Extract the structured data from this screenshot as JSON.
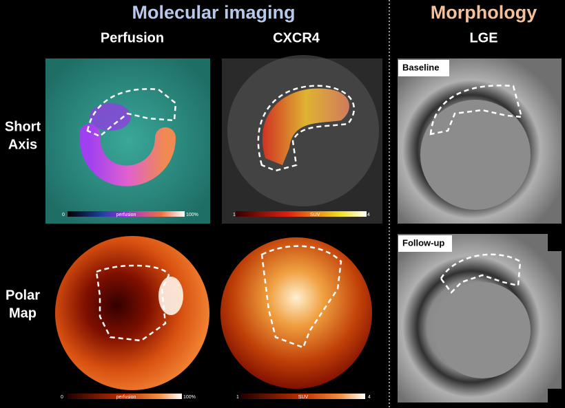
{
  "headers": {
    "molecular": "Molecular imaging",
    "morphology": "Morphology"
  },
  "columns": [
    "Perfusion",
    "CXCR4",
    "LGE"
  ],
  "rows": [
    [
      "Short",
      "Axis"
    ],
    [
      "Polar",
      "Map"
    ]
  ],
  "lge_labels": [
    "Baseline",
    "Follow-up"
  ],
  "colorbars": [
    {
      "min": "0",
      "label": "perfusion",
      "max": "100%"
    },
    {
      "min": "1",
      "label": "SUV",
      "max": "4"
    },
    {
      "min": "0",
      "label": "perfusion",
      "max": "100%"
    },
    {
      "min": "1",
      "label": "SUV",
      "max": "4"
    }
  ]
}
